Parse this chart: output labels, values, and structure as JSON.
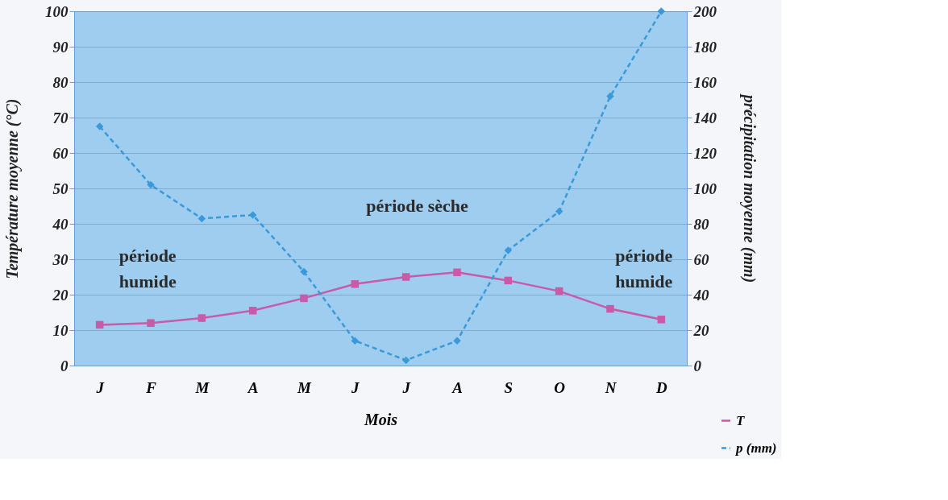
{
  "chart_data": {
    "type": "line",
    "categories": [
      "J",
      "F",
      "M",
      "A",
      "M",
      "J",
      "J",
      "A",
      "S",
      "O",
      "N",
      "D"
    ],
    "xlabel": "Mois",
    "ylabel": "Température moyenne (°C)",
    "y2label": "précipitation moyenne (mm)",
    "series": [
      {
        "name": "T",
        "color": "#c85aa8",
        "marker": "square",
        "line_style": "solid",
        "values": [
          11.5,
          12,
          13.4,
          15.5,
          19,
          23,
          25,
          26.3,
          24,
          21,
          16,
          13
        ]
      },
      {
        "name": "p (mm)",
        "color": "#3a9ad9",
        "marker": "diamond",
        "line_style": "dashed",
        "axis": "y2",
        "values": [
          135,
          102,
          83,
          85,
          53,
          14,
          3,
          14,
          65,
          87,
          152,
          200
        ]
      }
    ],
    "ylim": [
      0,
      100
    ],
    "yticks": [
      0,
      10,
      20,
      30,
      40,
      50,
      60,
      70,
      80,
      90,
      100
    ],
    "y2lim": [
      0,
      200
    ],
    "y2ticks": [
      0,
      20,
      40,
      60,
      80,
      100,
      120,
      140,
      160,
      180,
      200
    ],
    "grid": "y",
    "legend": "bottom right",
    "annotations": [
      "période humide",
      "période sèche",
      "période humide"
    ]
  }
}
